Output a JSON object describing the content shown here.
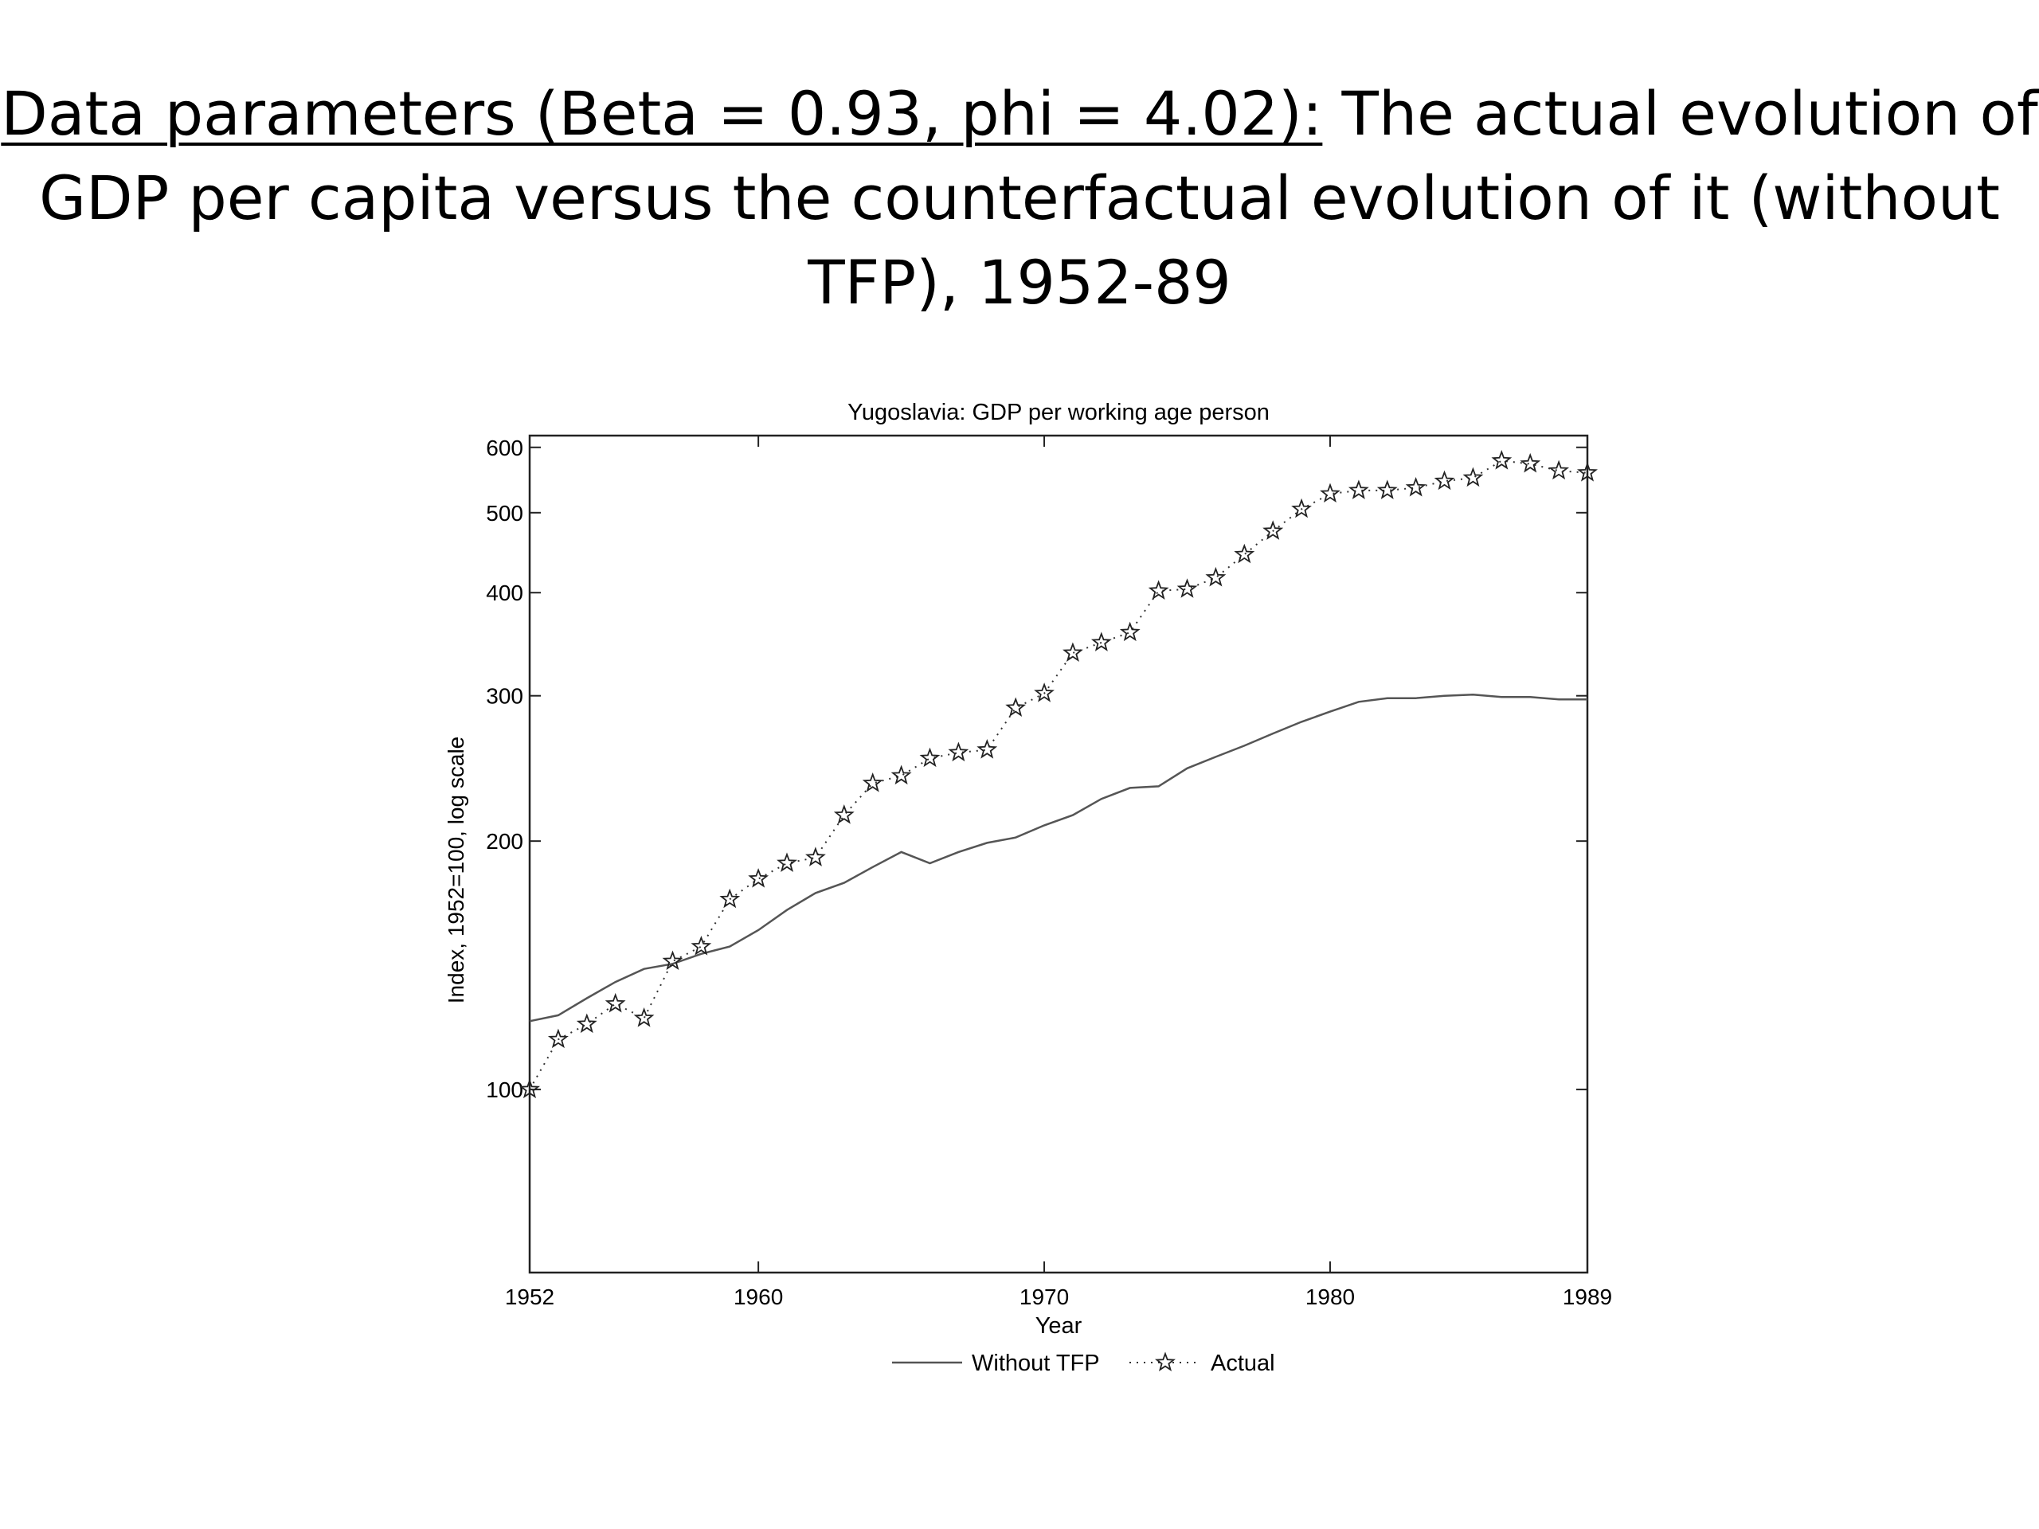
{
  "slide": {
    "title_underlined": "Data parameters (Beta = 0.93, phi = 4.02):",
    "title_rest": " The actual evolution of GDP per capita versus the counterfactual evolution of it (without TFP), 1952-89"
  },
  "chart_data": {
    "type": "line",
    "title": "Yugoslavia: GDP per working age person",
    "xlabel": "Year",
    "ylabel": "Index, 1952=100, log scale",
    "xlim": [
      1952,
      1989
    ],
    "ylim": [
      60,
      620
    ],
    "yscale": "log",
    "xticks": [
      1952,
      1960,
      1970,
      1980,
      1989
    ],
    "yticks": [
      100,
      200,
      300,
      400,
      500,
      600
    ],
    "legend_position": "bottom",
    "x": [
      1952,
      1953,
      1954,
      1955,
      1956,
      1957,
      1958,
      1959,
      1960,
      1961,
      1962,
      1963,
      1964,
      1965,
      1966,
      1967,
      1968,
      1969,
      1970,
      1971,
      1972,
      1973,
      1974,
      1975,
      1976,
      1977,
      1978,
      1979,
      1980,
      1981,
      1982,
      1983,
      1984,
      1985,
      1986,
      1987,
      1988,
      1989
    ],
    "series": [
      {
        "name": "Without TFP",
        "style": "solid",
        "color": "#555555",
        "values": [
          121,
          123,
          129,
          135,
          140,
          142,
          146,
          149,
          156,
          165,
          173,
          178,
          186,
          194,
          188,
          194,
          199,
          202,
          209,
          215,
          225,
          232,
          233,
          245,
          253,
          261,
          270,
          279,
          287,
          295,
          298,
          298,
          300,
          301,
          299,
          299,
          297,
          297
        ]
      },
      {
        "name": "Actual",
        "style": "dotted-star",
        "color": "#333333",
        "values": [
          100,
          115,
          120,
          127,
          122,
          143,
          149,
          170,
          180,
          188,
          191,
          215,
          235,
          240,
          252,
          256,
          258,
          290,
          302,
          338,
          348,
          358,
          402,
          404,
          417,
          445,
          475,
          505,
          527,
          532,
          532,
          536,
          546,
          551,
          578,
          573,
          562,
          559
        ]
      }
    ]
  }
}
